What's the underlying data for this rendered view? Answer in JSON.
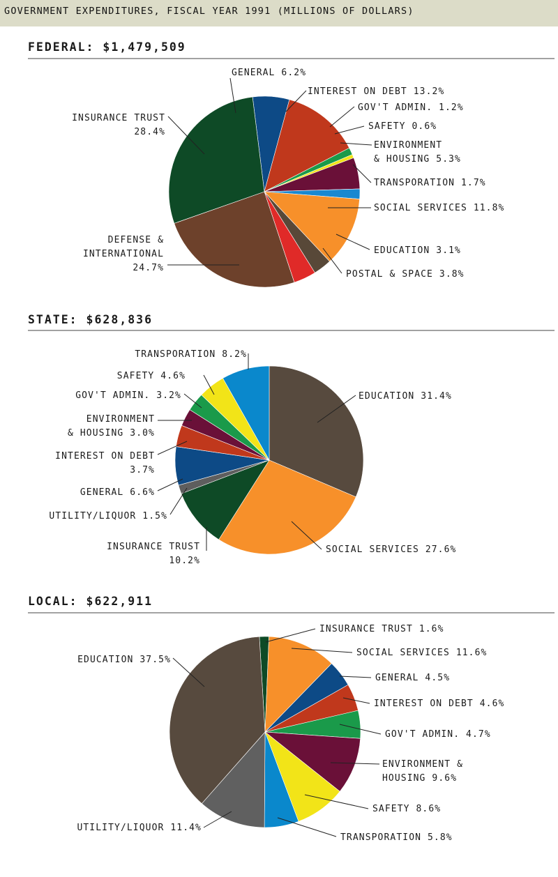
{
  "banner": {
    "title": "GOVERNMENT EXPENDITURES, FISCAL YEAR 1991 (MILLIONS OF DOLLARS)"
  },
  "chart_data": [
    {
      "type": "pie",
      "title": "FEDERAL: $1,479,509",
      "slices": [
        {
          "label": [
            "GENERAL 6.2%"
          ],
          "value": 6.2,
          "color": "#0d4a86"
        },
        {
          "label": [
            "INTEREST ON DEBT 13.2%"
          ],
          "value": 13.2,
          "color": "#c0381c"
        },
        {
          "label": [
            "GOV'T ADMIN. 1.2%"
          ],
          "value": 1.2,
          "color": "#1a9a4a"
        },
        {
          "label": [
            "SAFETY 0.6%"
          ],
          "value": 0.6,
          "color": "#f2e418"
        },
        {
          "label": [
            "ENVIRONMENT",
            "& HOUSING 5.3%"
          ],
          "value": 5.3,
          "color": "#6a1038"
        },
        {
          "label": [
            "TRANSPORATION 1.7%"
          ],
          "value": 1.7,
          "color": "#1a88d0"
        },
        {
          "label": [
            "SOCIAL SERVICES 11.8%"
          ],
          "value": 11.8,
          "color": "#f7902a"
        },
        {
          "label": [
            "EDUCATION 3.1%"
          ],
          "value": 3.1,
          "color": "#584838"
        },
        {
          "label": [
            "POSTAL & SPACE 3.8%"
          ],
          "value": 3.8,
          "color": "#e02a28"
        },
        {
          "label": [
            "DEFENSE &",
            "INTERNATIONAL",
            "24.7%"
          ],
          "value": 24.7,
          "color": "#6d412b"
        },
        {
          "label": [
            "INSURANCE TRUST",
            "28.4%"
          ],
          "value": 28.4,
          "color": "#0e4a26"
        }
      ]
    },
    {
      "type": "pie",
      "title": "STATE: $628,836",
      "slices": [
        {
          "label": [
            "EDUCATION 31.4%"
          ],
          "value": 31.4,
          "color": "#574a3e"
        },
        {
          "label": [
            "SOCIAL SERVICES 27.6%"
          ],
          "value": 27.6,
          "color": "#f7902a"
        },
        {
          "label": [
            "INSURANCE TRUST",
            "10.2%"
          ],
          "value": 10.2,
          "color": "#0e4a26"
        },
        {
          "label": [
            "UTILITY/LIQUOR 1.5%"
          ],
          "value": 1.5,
          "color": "#5e5e5e"
        },
        {
          "label": [
            "GENERAL 6.6%"
          ],
          "value": 6.6,
          "color": "#0d4a86"
        },
        {
          "label": [
            "INTEREST ON DEBT",
            "3.7%"
          ],
          "value": 3.7,
          "color": "#c0381c"
        },
        {
          "label": [
            "ENVIRONMENT",
            "& HOUSING 3.0%"
          ],
          "value": 3.0,
          "color": "#6a1038"
        },
        {
          "label": [
            "GOV'T ADMIN. 3.2%"
          ],
          "value": 3.2,
          "color": "#1a9a4a"
        },
        {
          "label": [
            "SAFETY 4.6%"
          ],
          "value": 4.6,
          "color": "#f2e418"
        },
        {
          "label": [
            "TRANSPORATION 8.2%"
          ],
          "value": 8.2,
          "color": "#0a88cc"
        }
      ]
    },
    {
      "type": "pie",
      "title": "LOCAL: $622,911",
      "slices": [
        {
          "label": [
            "INSURANCE TRUST 1.6%"
          ],
          "value": 1.6,
          "color": "#0e4a26"
        },
        {
          "label": [
            "SOCIAL SERVICES 11.6%"
          ],
          "value": 11.6,
          "color": "#f7902a"
        },
        {
          "label": [
            "GENERAL 4.5%"
          ],
          "value": 4.5,
          "color": "#0d4a86"
        },
        {
          "label": [
            "INTEREST ON DEBT 4.6%"
          ],
          "value": 4.6,
          "color": "#c0381c"
        },
        {
          "label": [
            "GOV'T ADMIN. 4.7%"
          ],
          "value": 4.7,
          "color": "#1a9a4a"
        },
        {
          "label": [
            "ENVIRONMENT &",
            "HOUSING 9.6%"
          ],
          "value": 9.6,
          "color": "#6a1038"
        },
        {
          "label": [
            "SAFETY 8.6%"
          ],
          "value": 8.6,
          "color": "#f2e418"
        },
        {
          "label": [
            "TRANSPORATION 5.8%"
          ],
          "value": 5.8,
          "color": "#0a88cc"
        },
        {
          "label": [
            "UTILITY/LIQUOR 11.4%"
          ],
          "value": 11.4,
          "color": "#606060"
        },
        {
          "label": [
            "EDUCATION 37.5%"
          ],
          "value": 37.5,
          "color": "#574a3e"
        }
      ]
    }
  ]
}
